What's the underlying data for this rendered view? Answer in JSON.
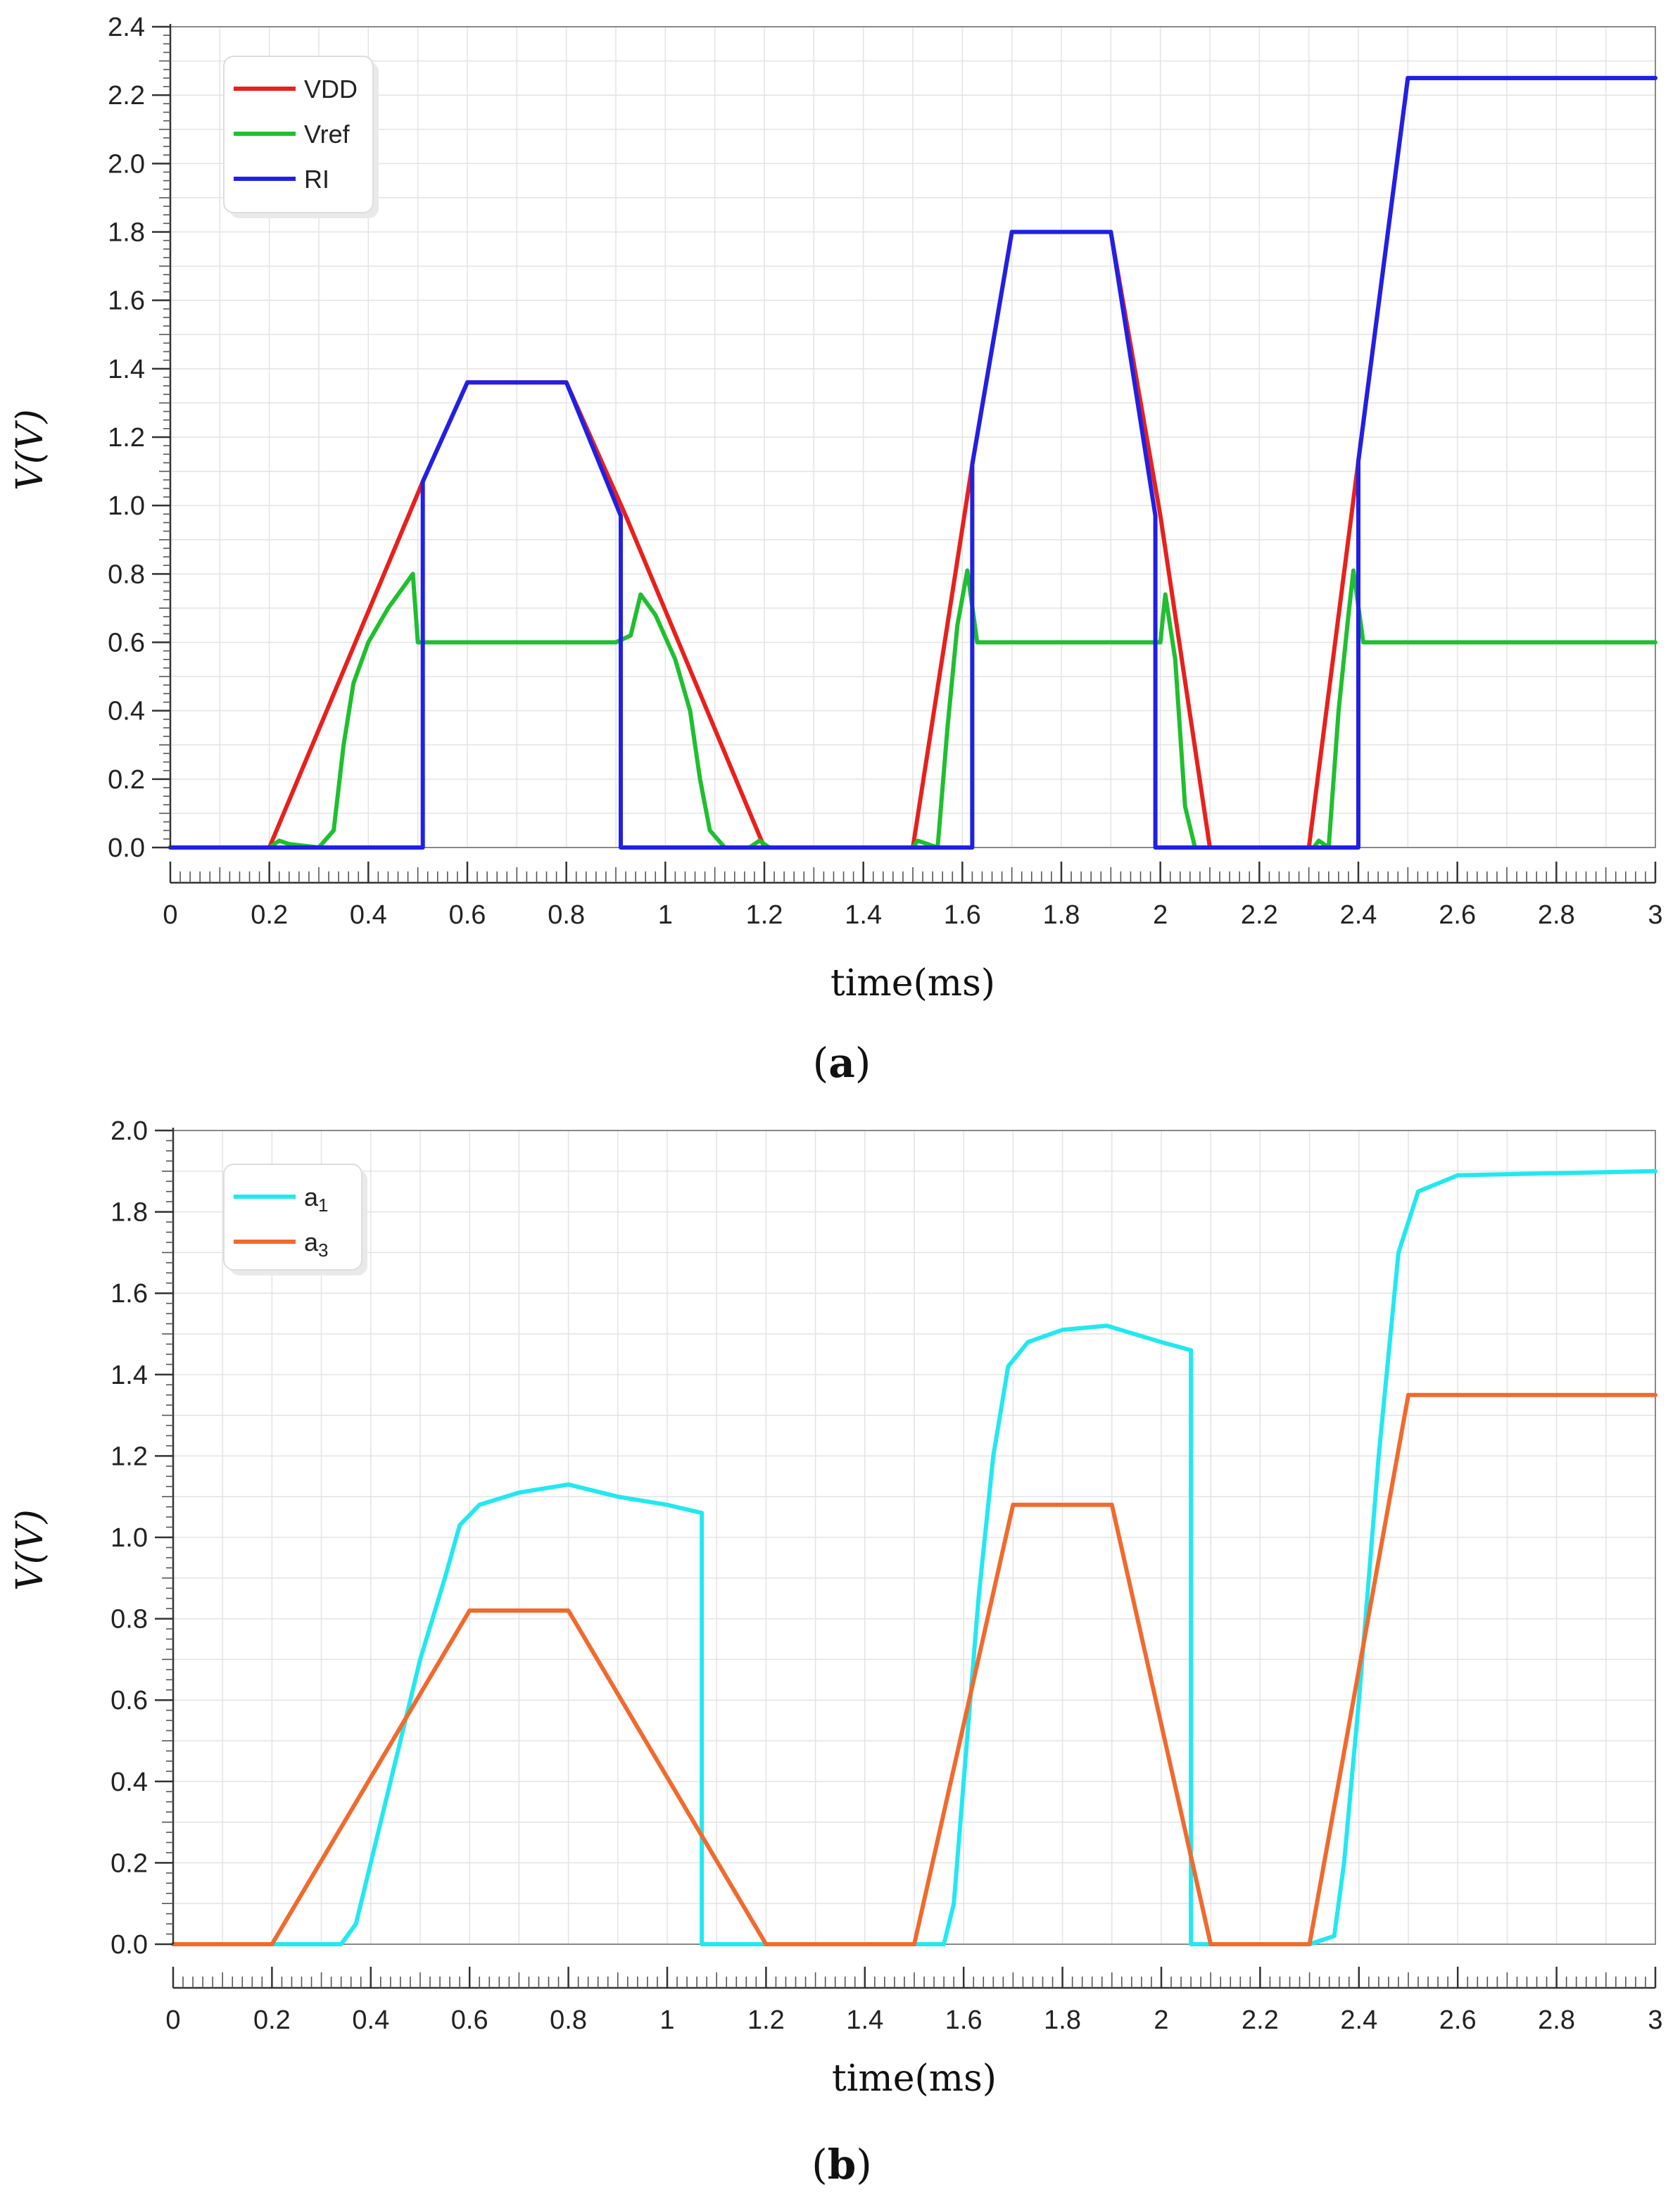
{
  "chart_data": [
    {
      "type": "line",
      "panel_label": "a",
      "title": "",
      "xlabel": "time(ms)",
      "ylabel": "V(V)",
      "xlim": [
        0,
        3
      ],
      "ylim": [
        0,
        2.4
      ],
      "x_ticks": [
        "0",
        "0.2",
        "0.4",
        "0.6",
        "0.8",
        "1",
        "1.2",
        "1.4",
        "1.6",
        "1.8",
        "2",
        "2.2",
        "2.4",
        "2.6",
        "2.8",
        "3"
      ],
      "y_ticks": [
        "0.0",
        "0.2",
        "0.4",
        "0.6",
        "0.8",
        "1.0",
        "1.2",
        "1.4",
        "1.6",
        "1.8",
        "2.0",
        "2.2",
        "2.4"
      ],
      "grid": true,
      "legend_position": "top-left",
      "series": [
        {
          "name": "VDD",
          "color": "#e8201c",
          "points": [
            [
              0,
              0
            ],
            [
              0.2,
              0
            ],
            [
              0.51,
              1.07
            ],
            [
              0.6,
              1.36
            ],
            [
              0.8,
              1.36
            ],
            [
              0.92,
              0.97
            ],
            [
              1.2,
              0
            ],
            [
              1.5,
              0
            ],
            [
              1.62,
              1.12
            ],
            [
              1.7,
              1.8
            ],
            [
              1.9,
              1.8
            ],
            [
              2.0,
              0.97
            ],
            [
              2.1,
              0
            ],
            [
              2.3,
              0
            ],
            [
              2.4,
              1.13
            ],
            [
              2.5,
              2.25
            ],
            [
              3.0,
              2.25
            ]
          ]
        },
        {
          "name": "Vref",
          "color": "#1fbf2f",
          "points": [
            [
              0,
              0
            ],
            [
              0.2,
              0
            ],
            [
              0.22,
              0.02
            ],
            [
              0.24,
              0.01
            ],
            [
              0.3,
              0
            ],
            [
              0.33,
              0.05
            ],
            [
              0.35,
              0.3
            ],
            [
              0.37,
              0.48
            ],
            [
              0.4,
              0.6
            ],
            [
              0.44,
              0.7
            ],
            [
              0.47,
              0.76
            ],
            [
              0.49,
              0.8
            ],
            [
              0.5,
              0.6
            ],
            [
              0.9,
              0.6
            ],
            [
              0.93,
              0.62
            ],
            [
              0.95,
              0.74
            ],
            [
              0.98,
              0.68
            ],
            [
              1.02,
              0.55
            ],
            [
              1.05,
              0.4
            ],
            [
              1.07,
              0.2
            ],
            [
              1.09,
              0.05
            ],
            [
              1.12,
              0
            ],
            [
              1.17,
              0
            ],
            [
              1.19,
              0.02
            ],
            [
              1.21,
              0
            ],
            [
              1.5,
              0
            ],
            [
              1.51,
              0.02
            ],
            [
              1.55,
              0
            ],
            [
              1.57,
              0.35
            ],
            [
              1.59,
              0.65
            ],
            [
              1.61,
              0.81
            ],
            [
              1.63,
              0.6
            ],
            [
              1.99,
              0.6
            ],
            [
              2.0,
              0.6
            ],
            [
              2.01,
              0.74
            ],
            [
              2.03,
              0.55
            ],
            [
              2.05,
              0.12
            ],
            [
              2.07,
              0
            ],
            [
              2.31,
              0
            ],
            [
              2.32,
              0.02
            ],
            [
              2.34,
              0
            ],
            [
              2.36,
              0.4
            ],
            [
              2.38,
              0.68
            ],
            [
              2.39,
              0.81
            ],
            [
              2.41,
              0.6
            ],
            [
              3.0,
              0.6
            ]
          ]
        },
        {
          "name": "RI",
          "color": "#2020e6",
          "points": [
            [
              0,
              0
            ],
            [
              0.51,
              0
            ],
            [
              0.51,
              1.07
            ],
            [
              0.6,
              1.36
            ],
            [
              0.8,
              1.36
            ],
            [
              0.91,
              0.97
            ],
            [
              0.91,
              0
            ],
            [
              1.62,
              0
            ],
            [
              1.62,
              1.12
            ],
            [
              1.7,
              1.8
            ],
            [
              1.9,
              1.8
            ],
            [
              1.99,
              0.97
            ],
            [
              1.99,
              0
            ],
            [
              2.4,
              0
            ],
            [
              2.4,
              1.13
            ],
            [
              2.5,
              2.25
            ],
            [
              3.0,
              2.25
            ]
          ]
        }
      ]
    },
    {
      "type": "line",
      "panel_label": "b",
      "title": "",
      "xlabel": "time(ms)",
      "ylabel": "V(V)",
      "xlim": [
        0,
        3
      ],
      "ylim": [
        0,
        2.0
      ],
      "x_ticks": [
        "0",
        "0.2",
        "0.4",
        "0.6",
        "0.8",
        "1",
        "1.2",
        "1.4",
        "1.6",
        "1.8",
        "2",
        "2.2",
        "2.4",
        "2.6",
        "2.8",
        "3"
      ],
      "y_ticks": [
        "0.0",
        "0.2",
        "0.4",
        "0.6",
        "0.8",
        "1.0",
        "1.2",
        "1.4",
        "1.6",
        "1.8",
        "2.0"
      ],
      "grid": true,
      "legend_position": "top-left",
      "series": [
        {
          "name": "a1",
          "label_base": "a",
          "label_sub": "1",
          "color": "#22e8f0",
          "points": [
            [
              0.2,
              0
            ],
            [
              0.3,
              0
            ],
            [
              0.34,
              0
            ],
            [
              0.37,
              0.05
            ],
            [
              0.4,
              0.2
            ],
            [
              0.45,
              0.45
            ],
            [
              0.5,
              0.7
            ],
            [
              0.55,
              0.9
            ],
            [
              0.58,
              1.03
            ],
            [
              0.62,
              1.08
            ],
            [
              0.7,
              1.11
            ],
            [
              0.8,
              1.13
            ],
            [
              0.9,
              1.1
            ],
            [
              1.0,
              1.08
            ],
            [
              1.07,
              1.06
            ],
            [
              1.07,
              0
            ],
            [
              1.2,
              0
            ],
            [
              1.5,
              0
            ],
            [
              1.56,
              0
            ],
            [
              1.58,
              0.1
            ],
            [
              1.6,
              0.4
            ],
            [
              1.63,
              0.85
            ],
            [
              1.66,
              1.2
            ],
            [
              1.69,
              1.42
            ],
            [
              1.73,
              1.48
            ],
            [
              1.8,
              1.51
            ],
            [
              1.89,
              1.52
            ],
            [
              2.0,
              1.48
            ],
            [
              2.06,
              1.46
            ],
            [
              2.06,
              0
            ],
            [
              2.1,
              0
            ],
            [
              2.3,
              0
            ],
            [
              2.35,
              0.02
            ],
            [
              2.37,
              0.2
            ],
            [
              2.4,
              0.6
            ],
            [
              2.44,
              1.2
            ],
            [
              2.48,
              1.7
            ],
            [
              2.52,
              1.85
            ],
            [
              2.6,
              1.89
            ],
            [
              3.0,
              1.9
            ]
          ]
        },
        {
          "name": "a3",
          "label_base": "a",
          "label_sub": "3",
          "color": "#f06a2e",
          "points": [
            [
              0,
              0
            ],
            [
              0.2,
              0
            ],
            [
              0.6,
              0.82
            ],
            [
              0.8,
              0.82
            ],
            [
              1.2,
              0
            ],
            [
              1.5,
              0
            ],
            [
              1.7,
              1.08
            ],
            [
              1.9,
              1.08
            ],
            [
              2.1,
              0
            ],
            [
              2.3,
              0
            ],
            [
              2.5,
              1.35
            ],
            [
              3.0,
              1.35
            ]
          ]
        }
      ]
    }
  ]
}
